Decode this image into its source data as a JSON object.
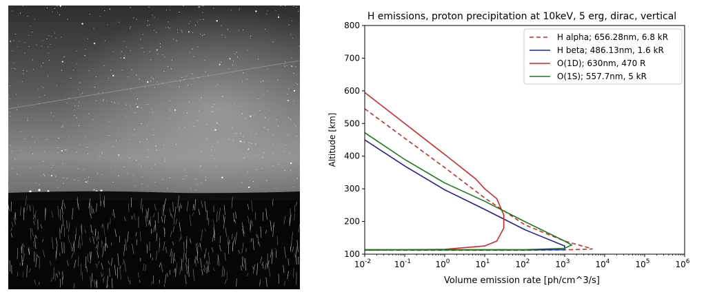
{
  "photo": {
    "subject": "night-sky-aurora-photo",
    "palette": [
      "#000000",
      "#444444",
      "#9a9a9a",
      "#ffffff"
    ]
  },
  "chart_data": {
    "type": "line",
    "title": "H emissions, proton precipitation at 10keV, 5 erg, dirac, vertical",
    "xlabel": "Volume emission rate [ph/cm^3/s]",
    "ylabel": "Altitude [km]",
    "xscale": "log",
    "xlim": [
      0.01,
      1000000
    ],
    "ylim": [
      100,
      800
    ],
    "xticks": [
      "10^-2",
      "10^-1",
      "10^0",
      "10^1",
      "10^2",
      "10^3",
      "10^4",
      "10^5",
      "10^6"
    ],
    "yticks": [
      "100",
      "200",
      "300",
      "400",
      "500",
      "600",
      "700",
      "800"
    ],
    "grid": false,
    "legend_position": "top-right",
    "series": [
      {
        "name": "H alpha; 656.28nm, 6.8 kR",
        "color": "#d62728",
        "dash": true,
        "points": [
          [
            0.01,
            545
          ],
          [
            0.1,
            455
          ],
          [
            1,
            365
          ],
          [
            10,
            272
          ],
          [
            100,
            190
          ],
          [
            1000,
            140
          ],
          [
            5000,
            116
          ],
          [
            1000,
            113
          ],
          [
            100,
            112
          ],
          [
            10,
            112
          ],
          [
            0.01,
            112
          ]
        ]
      },
      {
        "name": "H beta; 486.13nm, 1.6 kR",
        "color": "#1f1f9f",
        "dash": false,
        "points": [
          [
            0.01,
            450
          ],
          [
            0.1,
            370
          ],
          [
            1,
            297
          ],
          [
            10,
            237
          ],
          [
            100,
            175
          ],
          [
            1000,
            125
          ],
          [
            1000,
            114
          ],
          [
            100,
            113
          ],
          [
            0.01,
            113
          ]
        ]
      },
      {
        "name": "O(1D); 630nm, 470 R",
        "color": "#d62728",
        "dash": false,
        "points": [
          [
            0.01,
            595
          ],
          [
            0.1,
            500
          ],
          [
            1,
            405
          ],
          [
            6,
            330
          ],
          [
            10,
            300
          ],
          [
            20,
            270
          ],
          [
            30,
            220
          ],
          [
            30,
            180
          ],
          [
            20,
            140
          ],
          [
            10,
            125
          ],
          [
            1,
            115
          ],
          [
            0.01,
            112
          ]
        ]
      },
      {
        "name": "O(1S); 557.7nm, 5 kR",
        "color": "#1a7a1a",
        "dash": false,
        "points": [
          [
            0.01,
            472
          ],
          [
            0.1,
            390
          ],
          [
            1,
            318
          ],
          [
            10,
            262
          ],
          [
            100,
            200
          ],
          [
            1000,
            140
          ],
          [
            1500,
            128
          ],
          [
            1000,
            118
          ],
          [
            100,
            114
          ],
          [
            10,
            114
          ],
          [
            0.01,
            114
          ]
        ]
      }
    ]
  }
}
